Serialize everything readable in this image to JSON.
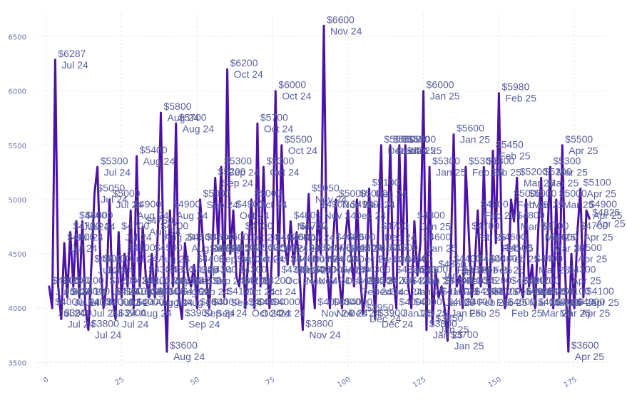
{
  "chart_data": {
    "type": "line",
    "title": "",
    "xlabel": "",
    "ylabel": "",
    "xlim": [
      -3,
      187
    ],
    "ylim": [
      3450,
      6720
    ],
    "x_ticks": [
      0,
      25,
      50,
      75,
      100,
      125,
      150,
      175
    ],
    "y_ticks": [
      3500,
      4000,
      4500,
      5000,
      5500,
      6000,
      6500
    ],
    "y_tick_labels": [
      "3500",
      "4000",
      "4500",
      "5000",
      "5500",
      "6000",
      "6500"
    ],
    "grid": true,
    "series_color": "#4a12a6",
    "label_color": "#5a5ea0",
    "points": [
      {
        "x": 1,
        "y": 4200,
        "v": "$4200",
        "m": "Jul 24"
      },
      {
        "x": 2,
        "y": 4000,
        "v": "$4000",
        "m": "Jul 24"
      },
      {
        "x": 3,
        "y": 6287,
        "v": "$6287",
        "m": "Jul 24"
      },
      {
        "x": 4,
        "y": 4200,
        "v": "$4200",
        "m": "Jul 24"
      },
      {
        "x": 5,
        "y": 3900,
        "v": "$3900",
        "m": "Jul 24"
      },
      {
        "x": 6,
        "y": 4600,
        "v": "$4600",
        "m": "Jul 24"
      },
      {
        "x": 7,
        "y": 4100,
        "v": "$4100",
        "m": "Jul 24"
      },
      {
        "x": 8,
        "y": 4700,
        "v": "$4700",
        "m": "Jul 24"
      },
      {
        "x": 9,
        "y": 4200,
        "v": "$4200",
        "m": "Jul 24"
      },
      {
        "x": 10,
        "y": 4800,
        "v": "$4800",
        "m": "Jul 24"
      },
      {
        "x": 11,
        "y": 4100,
        "v": "$4100",
        "m": "Jul 24"
      },
      {
        "x": 12,
        "y": 4800,
        "v": "$4800",
        "m": "Jul 24"
      },
      {
        "x": 13,
        "y": 4000,
        "v": "$4000",
        "m": "Jul 24"
      },
      {
        "x": 14,
        "y": 3800,
        "v": "$3800",
        "m": "Jul 24"
      },
      {
        "x": 15,
        "y": 4400,
        "v": "$4400",
        "m": "Jul 24"
      },
      {
        "x": 16,
        "y": 5050,
        "v": "$5050",
        "m": "Jul 24"
      },
      {
        "x": 17,
        "y": 5300,
        "v": "$5300",
        "m": "Jul 24"
      },
      {
        "x": 18,
        "y": 4400,
        "v": "$4400",
        "m": "Jul 24"
      },
      {
        "x": 19,
        "y": 4000,
        "v": "$4000",
        "m": "Jul 24"
      },
      {
        "x": 20,
        "y": 4200,
        "v": "$4200",
        "m": "Jul 24"
      },
      {
        "x": 21,
        "y": 5000,
        "v": "$5000",
        "m": "Jul 24"
      },
      {
        "x": 22,
        "y": 4100,
        "v": "$4100",
        "m": "Jul 24"
      },
      {
        "x": 23,
        "y": 3900,
        "v": "$3900",
        "m": "Jul 24"
      },
      {
        "x": 24,
        "y": 4700,
        "v": "$4700",
        "m": "Jul 24"
      },
      {
        "x": 25,
        "y": 4100,
        "v": "$4100",
        "m": "Jul 24"
      },
      {
        "x": 26,
        "y": 4500,
        "v": "$4500",
        "m": "Jul 24"
      },
      {
        "x": 27,
        "y": 4200,
        "v": "$4200",
        "m": "Aug 24"
      },
      {
        "x": 28,
        "y": 4900,
        "v": "$4900",
        "m": "Aug 24"
      },
      {
        "x": 29,
        "y": 4000,
        "v": "$4000",
        "m": "Aug 24"
      },
      {
        "x": 30,
        "y": 5400,
        "v": "$5400",
        "m": "Aug 24"
      },
      {
        "x": 31,
        "y": 4200,
        "v": "$4200",
        "m": "Aug 24"
      },
      {
        "x": 32,
        "y": 4750,
        "v": "$4750",
        "m": "Aug 24"
      },
      {
        "x": 33,
        "y": 4300,
        "v": "$4300",
        "m": "Aug 24"
      },
      {
        "x": 34,
        "y": 4100,
        "v": "$4100",
        "m": "Aug 24"
      },
      {
        "x": 35,
        "y": 4500,
        "v": "$4500",
        "m": "Aug 24"
      },
      {
        "x": 36,
        "y": 4100,
        "v": "$4100",
        "m": "Aug 24"
      },
      {
        "x": 37,
        "y": 4700,
        "v": "$4700",
        "m": "Aug 24"
      },
      {
        "x": 38,
        "y": 5800,
        "v": "$5800",
        "m": "Aug 24"
      },
      {
        "x": 39,
        "y": 4300,
        "v": "$4300",
        "m": "Aug 24"
      },
      {
        "x": 40,
        "y": 3600,
        "v": "$3600",
        "m": "Aug 24"
      },
      {
        "x": 41,
        "y": 4900,
        "v": "$4900",
        "m": "Aug 24"
      },
      {
        "x": 42,
        "y": 4200,
        "v": "$4200",
        "m": "Aug 24"
      },
      {
        "x": 43,
        "y": 5700,
        "v": "$5700",
        "m": "Aug 24"
      },
      {
        "x": 44,
        "y": 4100,
        "v": "$4100",
        "m": "Aug 24"
      },
      {
        "x": 45,
        "y": 3900,
        "v": "$3900",
        "m": "Sep 24"
      },
      {
        "x": 46,
        "y": 4600,
        "v": "$4600",
        "m": "Aug 24"
      },
      {
        "x": 47,
        "y": 4300,
        "v": "$4300",
        "m": "Sep 24"
      },
      {
        "x": 48,
        "y": 4200,
        "v": "$4200",
        "m": "Sep 24"
      },
      {
        "x": 49,
        "y": 4400,
        "v": "$4400",
        "m": "Sep 24"
      },
      {
        "x": 50,
        "y": 4000,
        "v": "$4000",
        "m": "Sep 24"
      },
      {
        "x": 51,
        "y": 5000,
        "v": "$5000",
        "m": "Sep 24"
      },
      {
        "x": 52,
        "y": 4600,
        "v": "$4600",
        "m": "Sep 24"
      },
      {
        "x": 53,
        "y": 4300,
        "v": "$4300",
        "m": "Sep 24"
      },
      {
        "x": 54,
        "y": 4000,
        "v": "$4000",
        "m": "Sep 24"
      },
      {
        "x": 55,
        "y": 4500,
        "v": "$4500",
        "m": "Sep 24"
      },
      {
        "x": 56,
        "y": 5200,
        "v": "$5200",
        "m": "Sep 24"
      },
      {
        "x": 57,
        "y": 4600,
        "v": "$4600",
        "m": "Sep 24"
      },
      {
        "x": 58,
        "y": 5300,
        "v": "$5300",
        "m": "Sep 24"
      },
      {
        "x": 59,
        "y": 4100,
        "v": "$4100",
        "m": "Sep 24"
      },
      {
        "x": 60,
        "y": 6200,
        "v": "$6200",
        "m": "Oct 24"
      },
      {
        "x": 61,
        "y": 4500,
        "v": "$4500",
        "m": "Sep 24"
      },
      {
        "x": 62,
        "y": 4900,
        "v": "$4900",
        "m": "Oct 24"
      },
      {
        "x": 63,
        "y": 4300,
        "v": "$4300",
        "m": "Oct 24"
      },
      {
        "x": 64,
        "y": 4200,
        "v": "$4200",
        "m": "Oct 24"
      },
      {
        "x": 65,
        "y": 4700,
        "v": "$4700",
        "m": "Oct 24"
      },
      {
        "x": 66,
        "y": 4000,
        "v": "$4000",
        "m": "Oct 24"
      },
      {
        "x": 67,
        "y": 4500,
        "v": "$4500",
        "m": "Oct 24"
      },
      {
        "x": 68,
        "y": 5000,
        "v": "$5000",
        "m": "Oct 24"
      },
      {
        "x": 69,
        "y": 4000,
        "v": "$4000",
        "m": "Oct 24"
      },
      {
        "x": 70,
        "y": 5700,
        "v": "$5700",
        "m": "Oct 24"
      },
      {
        "x": 71,
        "y": 4200,
        "v": "$4200",
        "m": "Oct 24"
      },
      {
        "x": 72,
        "y": 5300,
        "v": "$5300",
        "m": "Oct 24"
      },
      {
        "x": 73,
        "y": 4500,
        "v": "$4500",
        "m": "Oct 24"
      },
      {
        "x": 74,
        "y": 4000,
        "v": "$4000",
        "m": "Oct 24"
      },
      {
        "x": 75,
        "y": 4600,
        "v": "$4600",
        "m": "Oct 24"
      },
      {
        "x": 76,
        "y": 6000,
        "v": "$6000",
        "m": "Oct 24"
      },
      {
        "x": 77,
        "y": 4300,
        "v": "$4300",
        "m": "Oct 24"
      },
      {
        "x": 78,
        "y": 5500,
        "v": "$5500",
        "m": "Oct 24"
      },
      {
        "x": 79,
        "y": 4600,
        "v": "$4600",
        "m": "Oct 24"
      },
      {
        "x": 80,
        "y": 4400,
        "v": "$4400",
        "m": "Oct 24"
      },
      {
        "x": 81,
        "y": 4800,
        "v": "$4800",
        "m": "Nov 24"
      },
      {
        "x": 82,
        "y": 4400,
        "v": "$4400",
        "m": "Nov 24"
      },
      {
        "x": 83,
        "y": 4700,
        "v": "$4700",
        "m": "Nov 24"
      },
      {
        "x": 84,
        "y": 4300,
        "v": "$4300",
        "m": "Nov 24"
      },
      {
        "x": 85,
        "y": 3800,
        "v": "$3800",
        "m": "Nov 24"
      },
      {
        "x": 86,
        "y": 4500,
        "v": "$4500",
        "m": "Nov 24"
      },
      {
        "x": 87,
        "y": 5050,
        "v": "$5050",
        "m": "Nov 24"
      },
      {
        "x": 88,
        "y": 4300,
        "v": "$4300",
        "m": "Nov 24"
      },
      {
        "x": 89,
        "y": 4000,
        "v": "$4000",
        "m": "Nov 24"
      },
      {
        "x": 90,
        "y": 4900,
        "v": "$4900",
        "m": "Nov 24"
      },
      {
        "x": 91,
        "y": 4500,
        "v": "$4500",
        "m": "Nov 24"
      },
      {
        "x": 92,
        "y": 6600,
        "v": "$6600",
        "m": "Nov 24"
      },
      {
        "x": 93,
        "y": 4400,
        "v": "$4400",
        "m": "Nov 24"
      },
      {
        "x": 94,
        "y": 4000,
        "v": "$4000",
        "m": "Nov 24"
      },
      {
        "x": 95,
        "y": 4600,
        "v": "$4600",
        "m": "Nov 24"
      },
      {
        "x": 96,
        "y": 5000,
        "v": "$5000",
        "m": "Nov 24"
      },
      {
        "x": 97,
        "y": 4300,
        "v": "$4300",
        "m": "Dec 24"
      },
      {
        "x": 98,
        "y": 4000,
        "v": "$4000",
        "m": "Dec 24"
      },
      {
        "x": 99,
        "y": 4600,
        "v": "$4600",
        "m": "Dec 24"
      },
      {
        "x": 100,
        "y": 4900,
        "v": "$4900",
        "m": "Dec 24"
      },
      {
        "x": 101,
        "y": 4500,
        "v": "$4500",
        "m": "Dec 24"
      },
      {
        "x": 102,
        "y": 4200,
        "v": "$4200",
        "m": "Dec 24"
      },
      {
        "x": 103,
        "y": 5000,
        "v": "$5000",
        "m": "Dec 24"
      },
      {
        "x": 104,
        "y": 4300,
        "v": "$4300",
        "m": "Dec 24"
      },
      {
        "x": 105,
        "y": 3950,
        "v": "$3950",
        "m": "Dec 24"
      },
      {
        "x": 106,
        "y": 4200,
        "v": "$4200",
        "m": "Dec 24"
      },
      {
        "x": 107,
        "y": 5100,
        "v": "$5100",
        "m": "Dec 24"
      },
      {
        "x": 108,
        "y": 4500,
        "v": "$4500",
        "m": "Dec 24"
      },
      {
        "x": 109,
        "y": 3900,
        "v": "$3900",
        "m": "Dec 24"
      },
      {
        "x": 110,
        "y": 4700,
        "v": "$4700",
        "m": "Dec 24"
      },
      {
        "x": 111,
        "y": 5500,
        "v": "$5500",
        "m": "Dec 24"
      },
      {
        "x": 112,
        "y": 4200,
        "v": "$4200",
        "m": "Dec 24"
      },
      {
        "x": 113,
        "y": 4500,
        "v": "$4500",
        "m": "Dec 24"
      },
      {
        "x": 114,
        "y": 5500,
        "v": "$5500",
        "m": "Dec 24"
      },
      {
        "x": 115,
        "y": 4300,
        "v": "$4300",
        "m": "Jan 25"
      },
      {
        "x": 116,
        "y": 4000,
        "v": "$4000",
        "m": "Jan 25"
      },
      {
        "x": 117,
        "y": 5500,
        "v": "$5500",
        "m": "Jan 25"
      },
      {
        "x": 118,
        "y": 4400,
        "v": "$4400",
        "m": "Jan 25"
      },
      {
        "x": 119,
        "y": 5500,
        "v": "$5500",
        "m": "Jan 25"
      },
      {
        "x": 120,
        "y": 4200,
        "v": "$4200",
        "m": "Jan 25"
      },
      {
        "x": 121,
        "y": 4000,
        "v": "$4000",
        "m": "Jan 25"
      },
      {
        "x": 122,
        "y": 4800,
        "v": "$4800",
        "m": "Jan 25"
      },
      {
        "x": 123,
        "y": 4300,
        "v": "$4300",
        "m": "Jan 25"
      },
      {
        "x": 124,
        "y": 4600,
        "v": "$4600",
        "m": "Jan 25"
      },
      {
        "x": 125,
        "y": 6000,
        "v": "$6000",
        "m": "Jan 25"
      },
      {
        "x": 126,
        "y": 3800,
        "v": "$3800",
        "m": "Jan 25"
      },
      {
        "x": 127,
        "y": 5300,
        "v": "$5300",
        "m": "Jan 25"
      },
      {
        "x": 128,
        "y": 3850,
        "v": "$3850",
        "m": "Jan 25"
      },
      {
        "x": 129,
        "y": 4350,
        "v": "$4350",
        "m": "Jan 25"
      },
      {
        "x": 130,
        "y": 4100,
        "v": "$4100",
        "m": "Jan 25"
      },
      {
        "x": 131,
        "y": 4200,
        "v": "$4200",
        "m": "Jan 25"
      },
      {
        "x": 132,
        "y": 4000,
        "v": "$4000",
        "m": "Jan 25"
      },
      {
        "x": 133,
        "y": 3700,
        "v": "$3700",
        "m": "Jan 25"
      },
      {
        "x": 134,
        "y": 4400,
        "v": "$4400",
        "m": "Feb 25"
      },
      {
        "x": 135,
        "y": 5600,
        "v": "$5600",
        "m": "Jan 25"
      },
      {
        "x": 136,
        "y": 4200,
        "v": "$4200",
        "m": "Feb 25"
      },
      {
        "x": 137,
        "y": 4300,
        "v": "$4300",
        "m": "Feb 25"
      },
      {
        "x": 138,
        "y": 4000,
        "v": "$4000",
        "m": "Feb 25"
      },
      {
        "x": 139,
        "y": 5300,
        "v": "$5300",
        "m": "Feb 25"
      },
      {
        "x": 140,
        "y": 4700,
        "v": "$4700",
        "m": "Feb 25"
      },
      {
        "x": 141,
        "y": 4100,
        "v": "$4100",
        "m": "Feb 25"
      },
      {
        "x": 142,
        "y": 4400,
        "v": "$4400",
        "m": "Feb 25"
      },
      {
        "x": 143,
        "y": 4900,
        "v": "$4900",
        "m": "Feb 25"
      },
      {
        "x": 144,
        "y": 4200,
        "v": "$4200",
        "m": "Feb 25"
      },
      {
        "x": 145,
        "y": 5300,
        "v": "$5300",
        "m": "Feb 25"
      },
      {
        "x": 146,
        "y": 4400,
        "v": "$4400",
        "m": "Feb 25"
      },
      {
        "x": 147,
        "y": 4100,
        "v": "$4100",
        "m": "Feb 25"
      },
      {
        "x": 148,
        "y": 5450,
        "v": "$5450",
        "m": "Feb 25"
      },
      {
        "x": 149,
        "y": 4600,
        "v": "$4600",
        "m": "Feb 25"
      },
      {
        "x": 150,
        "y": 5980,
        "v": "$5980",
        "m": "Feb 25"
      },
      {
        "x": 151,
        "y": 4500,
        "v": "$4500",
        "m": "Feb 25"
      },
      {
        "x": 152,
        "y": 4000,
        "v": "$4000",
        "m": "Feb 25"
      },
      {
        "x": 153,
        "y": 4200,
        "v": "$4200",
        "m": "Feb 25"
      },
      {
        "x": 154,
        "y": 5000,
        "v": "$5000",
        "m": "Feb 25"
      },
      {
        "x": 155,
        "y": 4800,
        "v": "$4800",
        "m": "Mar 25"
      },
      {
        "x": 156,
        "y": 5200,
        "v": "$5200",
        "m": "Mar 25"
      },
      {
        "x": 157,
        "y": 4200,
        "v": "$4200",
        "m": "Mar 25"
      },
      {
        "x": 158,
        "y": 4100,
        "v": "$4100",
        "m": "Mar 25"
      },
      {
        "x": 159,
        "y": 5000,
        "v": "$5000",
        "m": "Mar 25"
      },
      {
        "x": 160,
        "y": 4200,
        "v": "$4200",
        "m": "Mar 25"
      },
      {
        "x": 161,
        "y": 4400,
        "v": "$4400",
        "m": "Mar 25"
      },
      {
        "x": 162,
        "y": 4000,
        "v": "$4000",
        "m": "Mar 25"
      },
      {
        "x": 163,
        "y": 4700,
        "v": "$4700",
        "m": "Mar 25"
      },
      {
        "x": 164,
        "y": 5200,
        "v": "$5200",
        "m": "Mar 25"
      },
      {
        "x": 165,
        "y": 4100,
        "v": "$4100",
        "m": "Mar 25"
      },
      {
        "x": 166,
        "y": 4600,
        "v": "$4600",
        "m": "Mar 25"
      },
      {
        "x": 167,
        "y": 5300,
        "v": "$5300",
        "m": "Mar 25"
      },
      {
        "x": 168,
        "y": 4000,
        "v": "$4000",
        "m": "Mar 25"
      },
      {
        "x": 169,
        "y": 5000,
        "v": "$5000",
        "m": "Mar 25"
      },
      {
        "x": 170,
        "y": 4100,
        "v": "$4100",
        "m": "Mar 25"
      },
      {
        "x": 171,
        "y": 5500,
        "v": "$5500",
        "m": "Apr 25"
      },
      {
        "x": 172,
        "y": 4300,
        "v": "$4300",
        "m": "Apr 25"
      },
      {
        "x": 173,
        "y": 3600,
        "v": "$3600",
        "m": "Apr 25"
      },
      {
        "x": 174,
        "y": 4500,
        "v": "$4500",
        "m": "Apr 25"
      },
      {
        "x": 175,
        "y": 4000,
        "v": "$4000",
        "m": "Apr 25"
      },
      {
        "x": 176,
        "y": 4700,
        "v": "$4700",
        "m": "Apr 25"
      },
      {
        "x": 177,
        "y": 5100,
        "v": "$5100",
        "m": "Apr 25"
      },
      {
        "x": 178,
        "y": 4100,
        "v": "$4100",
        "m": "Apr 25"
      },
      {
        "x": 179,
        "y": 4900,
        "v": "$4900",
        "m": "Apr 25"
      },
      {
        "x": 180,
        "y": 4825,
        "v": "$4825",
        "m": "Apr 25"
      }
    ]
  }
}
